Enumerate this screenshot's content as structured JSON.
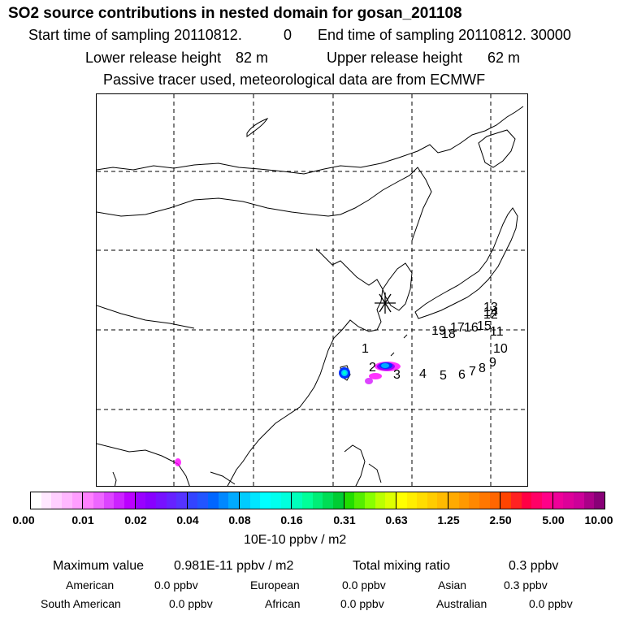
{
  "header": {
    "title": "SO2 source contributions in nested domain for gosan_201108",
    "start_label": "Start time of sampling 20110812.",
    "start_value": "0",
    "end_label": "End time of sampling 20110812. 30000",
    "lower_label": "Lower release height",
    "lower_value": "82 m",
    "upper_label": "Upper release height",
    "upper_value": "62 m",
    "note": "Passive tracer used, meteorological data are from ECMWF"
  },
  "map": {
    "receptor_icon": "asterisk-star-icon",
    "trajectory_labels": [
      "1",
      "2",
      "3",
      "4",
      "5",
      "6",
      "7",
      "8",
      "9",
      "10",
      "11",
      "12",
      "13",
      "14",
      "15",
      "16",
      "17",
      "18",
      "19"
    ],
    "plume_colors": [
      "#ff00ff",
      "#9900ff",
      "#0033ff",
      "#00aaff",
      "#00e5ff",
      "#00ffcc"
    ]
  },
  "colorbar": {
    "ticks": [
      "0.00",
      "0.01",
      "0.02",
      "0.04",
      "0.08",
      "0.16",
      "0.31",
      "0.63",
      "1.25",
      "2.50",
      "5.00",
      "10.00"
    ],
    "unit": "10E-10 ppbv / m2",
    "colors": [
      [
        "#ffffff",
        "#ffe8ff",
        "#ffd0ff",
        "#ffb8ff",
        "#ff9eff"
      ],
      [
        "#ff80ff",
        "#ee66ff",
        "#dd44ff",
        "#cc22ff",
        "#bb00ff"
      ],
      [
        "#9900ff",
        "#8800ff",
        "#7711ff",
        "#6622ff",
        "#5533ff"
      ],
      [
        "#3344ff",
        "#2255ff",
        "#0066ff",
        "#0088ff",
        "#00aaff"
      ],
      [
        "#00ccff",
        "#00e5ff",
        "#00ffff",
        "#00ffee",
        "#00ffdd"
      ],
      [
        "#00ffbb",
        "#00ff99",
        "#00ee77",
        "#00dd55",
        "#00cc33"
      ],
      [
        "#22dd00",
        "#55ee00",
        "#88ff00",
        "#bbff00",
        "#ddff00"
      ],
      [
        "#ffff00",
        "#ffee00",
        "#ffdd00",
        "#ffcc00",
        "#ffbb00"
      ],
      [
        "#ffaa00",
        "#ff9900",
        "#ff8800",
        "#ff7700",
        "#ff6600"
      ],
      [
        "#ff4400",
        "#ff2222",
        "#ff0044",
        "#ff0066",
        "#ff0088"
      ],
      [
        "#ee0099",
        "#dd0099",
        "#cc0099",
        "#aa0088",
        "#880077"
      ]
    ]
  },
  "stats": {
    "max_label": "Maximum value",
    "max_value": "0.981E-11 ppbv / m2",
    "total_label": "Total mixing ratio",
    "total_value": "0.3 ppbv",
    "regions": [
      {
        "name": "American",
        "value": "0.0 ppbv"
      },
      {
        "name": "European",
        "value": "0.0 ppbv"
      },
      {
        "name": "Asian",
        "value": "0.3 ppbv"
      },
      {
        "name": "South American",
        "value": "0.0 ppbv"
      },
      {
        "name": "African",
        "value": "0.0 ppbv"
      },
      {
        "name": "Australian",
        "value": "0.0 ppbv"
      }
    ]
  }
}
